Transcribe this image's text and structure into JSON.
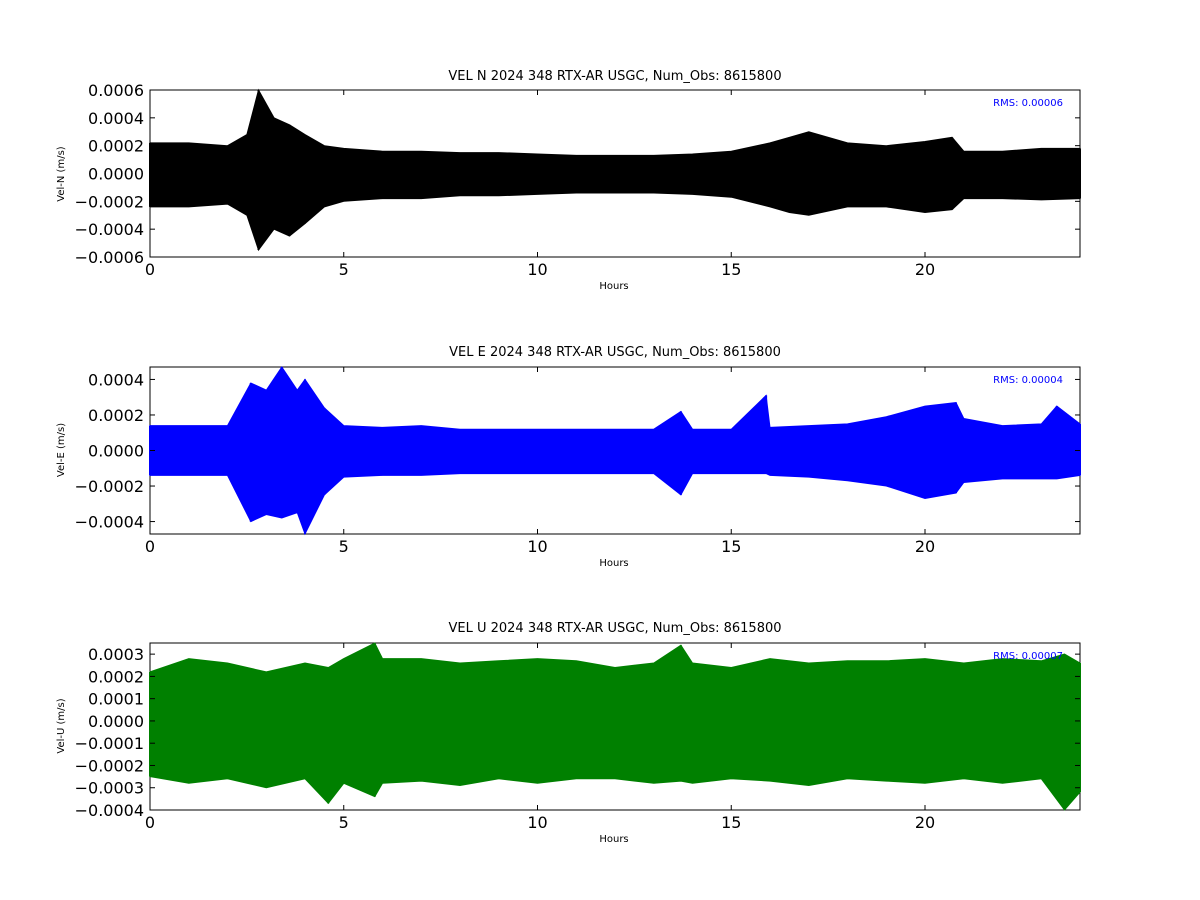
{
  "chart_data": [
    {
      "type": "line",
      "title": "VEL N 2024 348 RTX-AR  USGC, Num_Obs: 8615800",
      "xlabel": "Hours",
      "ylabel": "Vel-N (m/s)",
      "xlim": [
        0,
        24
      ],
      "ylim": [
        -0.0006,
        0.0006
      ],
      "xticks": [
        0,
        5,
        10,
        15,
        20
      ],
      "xtick_labels": [
        "0",
        "5",
        "10",
        "15",
        "20"
      ],
      "yticks": [
        -0.0006,
        -0.0004,
        -0.0002,
        0.0,
        0.0002,
        0.0004,
        0.0006
      ],
      "ytick_labels": [
        "−0.0006",
        "−0.0004",
        "−0.0002",
        "0.0000",
        "0.0002",
        "0.0004",
        "0.0006"
      ],
      "color": "#000000",
      "annotation": "RMS:  0.00006",
      "annotation_color": "#0000ff",
      "grid": false,
      "series": [
        {
          "x": [
            0,
            1,
            2,
            2.5,
            2.8,
            3.2,
            3.6,
            4.0,
            4.5,
            5,
            6,
            7,
            8,
            9,
            10,
            11,
            12,
            13,
            14,
            15,
            16,
            16.5,
            17,
            18,
            19,
            20,
            20.7,
            21,
            22,
            23,
            24
          ],
          "upper": [
            0.00022,
            0.00022,
            0.0002,
            0.00028,
            0.0006,
            0.0004,
            0.00035,
            0.00028,
            0.0002,
            0.00018,
            0.00016,
            0.00016,
            0.00015,
            0.00015,
            0.00014,
            0.00013,
            0.00013,
            0.00013,
            0.00014,
            0.00016,
            0.00022,
            0.00026,
            0.0003,
            0.00022,
            0.0002,
            0.00023,
            0.00026,
            0.00016,
            0.00016,
            0.00018,
            0.00018
          ],
          "lower": [
            -0.00024,
            -0.00024,
            -0.00022,
            -0.0003,
            -0.00055,
            -0.0004,
            -0.00045,
            -0.00036,
            -0.00024,
            -0.0002,
            -0.00018,
            -0.00018,
            -0.00016,
            -0.00016,
            -0.00015,
            -0.00014,
            -0.00014,
            -0.00014,
            -0.00015,
            -0.00017,
            -0.00024,
            -0.00028,
            -0.0003,
            -0.00024,
            -0.00024,
            -0.00028,
            -0.00026,
            -0.00018,
            -0.00018,
            -0.00019,
            -0.00018
          ]
        }
      ]
    },
    {
      "type": "line",
      "title": "VEL E 2024 348 RTX-AR  USGC, Num_Obs: 8615800",
      "xlabel": "Hours",
      "ylabel": "Vel-E (m/s)",
      "xlim": [
        0,
        24
      ],
      "ylim": [
        -0.00047,
        0.00047
      ],
      "xticks": [
        0,
        5,
        10,
        15,
        20
      ],
      "xtick_labels": [
        "0",
        "5",
        "10",
        "15",
        "20"
      ],
      "yticks": [
        -0.0004,
        -0.0002,
        0.0,
        0.0002,
        0.0004
      ],
      "ytick_labels": [
        "−0.0004",
        "−0.0002",
        "0.0000",
        "0.0002",
        "0.0004"
      ],
      "color": "#0000ff",
      "annotation": "RMS:  0.00004",
      "annotation_color": "#0000ff",
      "grid": false,
      "series": [
        {
          "x": [
            0,
            1,
            2,
            2.6,
            3.0,
            3.4,
            3.8,
            4.0,
            4.5,
            5,
            6,
            7,
            8,
            9,
            10,
            11,
            12,
            13,
            13.7,
            14,
            15,
            15.9,
            16,
            17,
            18,
            19,
            20,
            20.8,
            21,
            22,
            23,
            23.4,
            24
          ],
          "upper": [
            0.00014,
            0.00014,
            0.00014,
            0.00038,
            0.00034,
            0.00047,
            0.00034,
            0.0004,
            0.00024,
            0.00014,
            0.00013,
            0.00014,
            0.00012,
            0.00012,
            0.00012,
            0.00012,
            0.00012,
            0.00012,
            0.00022,
            0.00012,
            0.00012,
            0.00031,
            0.00013,
            0.00014,
            0.00015,
            0.00019,
            0.00025,
            0.00027,
            0.00018,
            0.00014,
            0.00015,
            0.00025,
            0.00015
          ],
          "lower": [
            -0.00014,
            -0.00014,
            -0.00014,
            -0.0004,
            -0.00036,
            -0.00038,
            -0.00035,
            -0.00047,
            -0.00025,
            -0.00015,
            -0.00014,
            -0.00014,
            -0.00013,
            -0.00013,
            -0.00013,
            -0.00013,
            -0.00013,
            -0.00013,
            -0.00025,
            -0.00013,
            -0.00013,
            -0.00013,
            -0.00014,
            -0.00015,
            -0.00017,
            -0.0002,
            -0.00027,
            -0.00024,
            -0.00018,
            -0.00016,
            -0.00016,
            -0.00016,
            -0.00014
          ]
        }
      ]
    },
    {
      "type": "line",
      "title": "VEL U 2024 348 RTX-AR  USGC, Num_Obs: 8615800",
      "xlabel": "Hours",
      "ylabel": "Vel-U (m/s)",
      "xlim": [
        0,
        24
      ],
      "ylim": [
        -0.0004,
        0.00035
      ],
      "xticks": [
        0,
        5,
        10,
        15,
        20
      ],
      "xtick_labels": [
        "0",
        "5",
        "10",
        "15",
        "20"
      ],
      "yticks": [
        -0.0004,
        -0.0003,
        -0.0002,
        -0.0001,
        0.0,
        0.0001,
        0.0002,
        0.0003
      ],
      "ytick_labels": [
        "−0.0004",
        "−0.0003",
        "−0.0002",
        "−0.0001",
        "0.0000",
        "0.0001",
        "0.0002",
        "0.0003"
      ],
      "color": "#008000",
      "annotation": "RMS:  0.00007",
      "annotation_color": "#0000ff",
      "grid": false,
      "series": [
        {
          "x": [
            0,
            1,
            2,
            3,
            4,
            4.6,
            5,
            5.8,
            6,
            7,
            8,
            9,
            10,
            11,
            12,
            13,
            13.7,
            14,
            15,
            16,
            17,
            18,
            19,
            20,
            21,
            22,
            23,
            23.6,
            24
          ],
          "upper": [
            0.00022,
            0.00028,
            0.00026,
            0.00022,
            0.00026,
            0.00024,
            0.00028,
            0.00035,
            0.00028,
            0.00028,
            0.00026,
            0.00027,
            0.00028,
            0.00027,
            0.00024,
            0.00026,
            0.00034,
            0.00026,
            0.00024,
            0.00028,
            0.00026,
            0.00027,
            0.00027,
            0.00028,
            0.00026,
            0.00028,
            0.00027,
            0.0003,
            0.00026
          ],
          "lower": [
            -0.00025,
            -0.00028,
            -0.00026,
            -0.0003,
            -0.00026,
            -0.00037,
            -0.00028,
            -0.00034,
            -0.00028,
            -0.00027,
            -0.00029,
            -0.00026,
            -0.00028,
            -0.00026,
            -0.00026,
            -0.00028,
            -0.00027,
            -0.00028,
            -0.00026,
            -0.00027,
            -0.00029,
            -0.00026,
            -0.00027,
            -0.00028,
            -0.00026,
            -0.00028,
            -0.00026,
            -0.0004,
            -0.00032
          ]
        }
      ]
    }
  ]
}
